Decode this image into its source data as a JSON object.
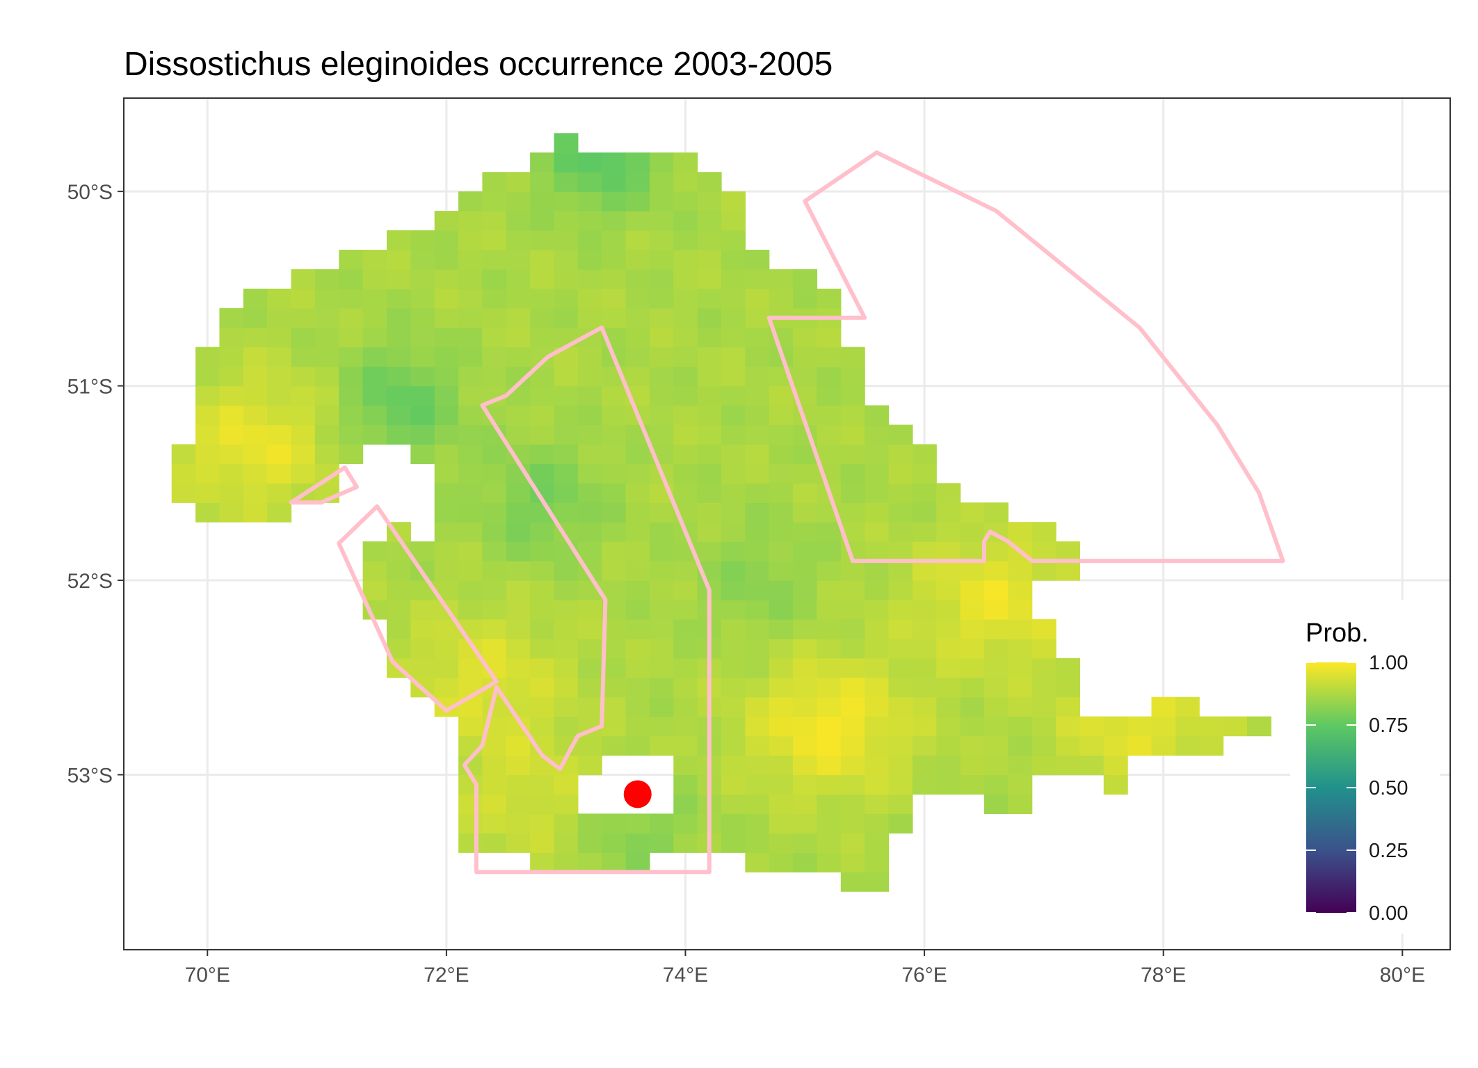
{
  "title": "Dissostichus eleginoides  occurrence 2003-2005",
  "chart_data": {
    "type": "heatmap",
    "title": "Dissostichus eleginoides  occurrence 2003-2005",
    "xlabel": "",
    "ylabel": "",
    "xlim": [
      69.3,
      80.4
    ],
    "ylim": [
      -53.9,
      -49.52
    ],
    "x_ticks": [
      70,
      72,
      74,
      76,
      78,
      80
    ],
    "x_tick_labels": [
      "70°E",
      "72°E",
      "74°E",
      "76°E",
      "78°E",
      "80°E"
    ],
    "y_ticks": [
      -50,
      -51,
      -52,
      -53
    ],
    "y_tick_labels": [
      "50°S",
      "51°S",
      "52°S",
      "53°S"
    ],
    "grid": true,
    "fill_range": [
      0.8,
      0.99
    ],
    "region_polygon": [
      [
        72.9,
        -49.7
      ],
      [
        73.4,
        -49.8
      ],
      [
        74.1,
        -49.8
      ],
      [
        74.4,
        -50.0
      ],
      [
        74.6,
        -50.2
      ],
      [
        74.6,
        -50.3
      ],
      [
        75.0,
        -50.4
      ],
      [
        75.3,
        -50.5
      ],
      [
        75.5,
        -50.6
      ],
      [
        75.3,
        -50.65
      ],
      [
        75.5,
        -51.0
      ],
      [
        75.7,
        -51.1
      ],
      [
        75.9,
        -51.25
      ],
      [
        76.1,
        -51.35
      ],
      [
        76.2,
        -51.5
      ],
      [
        76.3,
        -51.6
      ],
      [
        76.6,
        -51.6
      ],
      [
        76.9,
        -51.7
      ],
      [
        77.3,
        -51.8
      ],
      [
        77.3,
        -51.95
      ],
      [
        77.0,
        -52.0
      ],
      [
        76.95,
        -52.2
      ],
      [
        77.15,
        -52.3
      ],
      [
        77.3,
        -52.5
      ],
      [
        77.4,
        -52.7
      ],
      [
        77.8,
        -52.7
      ],
      [
        78.2,
        -52.6
      ],
      [
        78.5,
        -52.7
      ],
      [
        78.8,
        -52.7
      ],
      [
        79.0,
        -52.8
      ],
      [
        78.2,
        -52.9
      ],
      [
        77.8,
        -52.95
      ],
      [
        77.8,
        -53.2
      ],
      [
        77.5,
        -53.0
      ],
      [
        77.0,
        -53.0
      ],
      [
        76.9,
        -53.2
      ],
      [
        76.0,
        -53.1
      ],
      [
        75.8,
        -53.35
      ],
      [
        75.8,
        -53.7
      ],
      [
        75.5,
        -53.6
      ],
      [
        75.2,
        -53.5
      ],
      [
        74.8,
        -53.5
      ],
      [
        74.2,
        -53.4
      ],
      [
        73.3,
        -53.5
      ],
      [
        72.3,
        -53.4
      ],
      [
        72.0,
        -53.3
      ],
      [
        72.1,
        -52.9
      ],
      [
        72.0,
        -52.7
      ],
      [
        71.6,
        -52.5
      ],
      [
        71.5,
        -52.3
      ],
      [
        71.2,
        -52.0
      ],
      [
        71.3,
        -51.85
      ],
      [
        71.6,
        -51.7
      ],
      [
        71.95,
        -51.8
      ],
      [
        71.9,
        -51.45
      ],
      [
        71.6,
        -51.3
      ],
      [
        71.4,
        -51.3
      ],
      [
        71.0,
        -51.55
      ],
      [
        70.6,
        -51.65
      ],
      [
        69.9,
        -51.65
      ],
      [
        69.8,
        -51.55
      ],
      [
        69.8,
        -51.3
      ],
      [
        69.9,
        -51.0
      ],
      [
        70.0,
        -50.75
      ],
      [
        70.2,
        -50.6
      ],
      [
        70.5,
        -50.5
      ],
      [
        70.8,
        -50.4
      ],
      [
        71.2,
        -50.3
      ],
      [
        71.6,
        -50.2
      ],
      [
        72.0,
        -50.1
      ],
      [
        72.3,
        -49.95
      ],
      [
        72.6,
        -49.85
      ]
    ],
    "holes": [
      [
        [
          73.3,
          -52.9
        ],
        [
          73.9,
          -52.9
        ],
        [
          74.0,
          -53.08
        ],
        [
          73.8,
          -53.2
        ],
        [
          73.4,
          -53.2
        ],
        [
          73.1,
          -53.15
        ]
      ],
      [
        [
          74.7,
          -50.0
        ],
        [
          74.9,
          -50.1
        ],
        [
          74.8,
          -50.25
        ]
      ]
    ],
    "hotspots": [
      {
        "lon": 70.4,
        "lat": -51.3,
        "value": 0.97
      },
      {
        "lon": 75.2,
        "lat": -52.75,
        "value": 0.99
      },
      {
        "lon": 76.6,
        "lat": -52.1,
        "value": 0.97
      },
      {
        "lon": 72.3,
        "lat": -52.5,
        "value": 0.95
      },
      {
        "lon": 77.8,
        "lat": -52.75,
        "value": 0.96
      },
      {
        "lon": 72.7,
        "lat": -53.1,
        "value": 0.93
      }
    ],
    "lowspots": [
      {
        "lon": 71.6,
        "lat": -51.1,
        "value": 0.76
      },
      {
        "lon": 72.8,
        "lat": -51.6,
        "value": 0.79
      },
      {
        "lon": 73.3,
        "lat": -49.8,
        "value": 0.74
      },
      {
        "lon": 73.6,
        "lat": -53.3,
        "value": 0.81
      },
      {
        "lon": 74.6,
        "lat": -52.0,
        "value": 0.82
      }
    ],
    "polygons": [
      {
        "points": [
          [
            72.3,
            -51.1
          ],
          [
            72.5,
            -51.05
          ],
          [
            72.85,
            -50.85
          ],
          [
            73.3,
            -50.7
          ],
          [
            74.2,
            -52.05
          ],
          [
            74.2,
            -53.5
          ],
          [
            72.25,
            -53.5
          ],
          [
            72.25,
            -53.05
          ],
          [
            72.15,
            -52.95
          ],
          [
            72.3,
            -52.85
          ],
          [
            72.42,
            -52.55
          ],
          [
            72.8,
            -52.9
          ],
          [
            72.95,
            -52.97
          ],
          [
            73.1,
            -52.8
          ],
          [
            73.3,
            -52.75
          ],
          [
            73.33,
            -52.1
          ]
        ]
      },
      {
        "points": [
          [
            71.42,
            -51.62
          ],
          [
            72.42,
            -52.52
          ],
          [
            72.0,
            -52.67
          ],
          [
            71.55,
            -52.42
          ],
          [
            71.1,
            -51.81
          ]
        ]
      },
      {
        "points": [
          [
            70.7,
            -51.6
          ],
          [
            71.15,
            -51.42
          ],
          [
            71.25,
            -51.52
          ],
          [
            70.95,
            -51.6
          ]
        ]
      },
      {
        "points": [
          [
            74.7,
            -50.65
          ],
          [
            75.5,
            -50.65
          ],
          [
            75.0,
            -50.05
          ],
          [
            75.6,
            -49.8
          ],
          [
            76.6,
            -50.1
          ],
          [
            77.2,
            -50.4
          ],
          [
            77.8,
            -50.7
          ],
          [
            78.45,
            -51.2
          ],
          [
            78.8,
            -51.55
          ],
          [
            79.0,
            -51.9
          ],
          [
            76.9,
            -51.9
          ],
          [
            76.7,
            -51.8
          ],
          [
            76.55,
            -51.75
          ],
          [
            76.5,
            -51.8
          ],
          [
            76.5,
            -51.9
          ],
          [
            75.4,
            -51.9
          ]
        ]
      }
    ],
    "point": {
      "lon": 73.6,
      "lat": -53.1
    },
    "legend": {
      "title": "Prob.",
      "placement": "right",
      "ticks": [
        1.0,
        0.75,
        0.5,
        0.25,
        0.0
      ],
      "tick_labels": [
        "1.00",
        "0.75",
        "0.50",
        "0.25",
        "0.00"
      ],
      "colors": [
        "#440154",
        "#3b528b",
        "#21918c",
        "#5ec962",
        "#fde725"
      ]
    }
  },
  "colors": {
    "polygon_stroke": "#ffc0cb",
    "point_fill": "#ff0000",
    "grid": "#ebebeb",
    "panel_border": "#333333"
  }
}
